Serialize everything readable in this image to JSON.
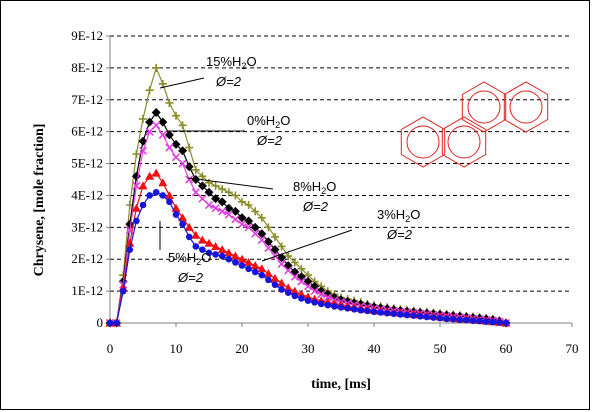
{
  "chart_data": {
    "type": "line",
    "title": "",
    "xlabel": "time, [ms]",
    "ylabel": "Chrysene, [mole fraction]",
    "xlim": [
      0,
      70
    ],
    "ylim": [
      0,
      9e-12
    ],
    "x_ticks": [
      "0",
      "10",
      "20",
      "30",
      "40",
      "50",
      "60",
      "70"
    ],
    "y_ticks": [
      "0",
      "1E-12",
      "2E-12",
      "3E-12",
      "4E-12",
      "5E-12",
      "6E-12",
      "7E-12",
      "8E-12",
      "9E-12"
    ],
    "grid": "horizontal dashed",
    "legend": "none",
    "annotations": [
      {
        "text": "15%H2O",
        "line2": "Ø=2",
        "series": "15%H2O Ø=2"
      },
      {
        "text": "0%H2O",
        "line2": "Ø=2",
        "series": "0%H2O Ø=2"
      },
      {
        "text": "8%H2O",
        "line2": "Ø=2",
        "series": "8%H2O Ø=2"
      },
      {
        "text": "3%H2O",
        "line2": "Ø=2",
        "series": "3%H2O Ø=2"
      },
      {
        "text": "5%H2O",
        "line2": "Ø=2",
        "series": "5%H2O Ø=2"
      }
    ],
    "inset": "chrysene-molecule-structure",
    "colors": {
      "15%": "#8b8b2a",
      "0%": "#000000",
      "8%": "#e33ee3",
      "3%": "#ee1111",
      "5%": "#1515dd",
      "molecule": "#dd2222"
    },
    "x": [
      0,
      1,
      2,
      3,
      4,
      5,
      6,
      7,
      8,
      9,
      10,
      11,
      12,
      13,
      14,
      15,
      16,
      17,
      18,
      19,
      20,
      21,
      22,
      23,
      24,
      25,
      26,
      27,
      28,
      29,
      30,
      31,
      32,
      33,
      34,
      35,
      36,
      37,
      38,
      39,
      40,
      41,
      42,
      43,
      44,
      45,
      46,
      47,
      48,
      49,
      50,
      51,
      52,
      53,
      54,
      55,
      56,
      57,
      58,
      59,
      60
    ],
    "series": [
      {
        "name": "15%H2O Ø=2",
        "marker": "plus",
        "values": [
          0,
          0,
          1.5e-12,
          3.7e-12,
          5.3e-12,
          6.4e-12,
          7.3e-12,
          8e-12,
          7.5e-12,
          6.9e-12,
          6.5e-12,
          6.2e-12,
          5.5e-12,
          4.8e-12,
          4.6e-12,
          4.4e-12,
          4.3e-12,
          4.2e-12,
          4.1e-12,
          4e-12,
          3.8e-12,
          3.7e-12,
          3.5e-12,
          3.3e-12,
          3e-12,
          2.7e-12,
          2.4e-12,
          2.1e-12,
          1.9e-12,
          1.7e-12,
          1.5e-12,
          1.3e-12,
          1.15e-12,
          1e-12,
          9e-13,
          8e-13,
          7.5e-13,
          7e-13,
          6.5e-13,
          6e-13,
          5.6e-13,
          5.2e-13,
          4.9e-13,
          4.6e-13,
          4.3e-13,
          4e-13,
          3.8e-13,
          3.6e-13,
          3.4e-13,
          3.2e-13,
          3e-13,
          2.8e-13,
          2.6e-13,
          2.4e-13,
          2.2e-13,
          2e-13,
          1.8e-13,
          1.5e-13,
          1.2e-13,
          8e-14,
          0
        ]
      },
      {
        "name": "0%H2O Ø=2",
        "marker": "diamond",
        "values": [
          0,
          0,
          1.3e-12,
          3.1e-12,
          4.6e-12,
          5.7e-12,
          6.3e-12,
          6.6e-12,
          6.3e-12,
          5.9e-12,
          5.6e-12,
          5.4e-12,
          4.9e-12,
          4.5e-12,
          4.3e-12,
          4.1e-12,
          3.9e-12,
          3.8e-12,
          3.6e-12,
          3.5e-12,
          3.3e-12,
          3.2e-12,
          3e-12,
          2.8e-12,
          2.55e-12,
          2.3e-12,
          2.05e-12,
          1.8e-12,
          1.6e-12,
          1.45e-12,
          1.3e-12,
          1.15e-12,
          1e-12,
          9e-13,
          8e-13,
          7.3e-13,
          6.8e-13,
          6.3e-13,
          5.9e-13,
          5.5e-13,
          5.1e-13,
          4.8e-13,
          4.5e-13,
          4.2e-13,
          3.9e-13,
          3.7e-13,
          3.5e-13,
          3.3e-13,
          3.1e-13,
          2.9e-13,
          2.7e-13,
          2.5e-13,
          2.3e-13,
          2.1e-13,
          1.9e-13,
          1.7e-13,
          1.5e-13,
          1.3e-13,
          1e-13,
          6e-14,
          0
        ]
      },
      {
        "name": "8%H2O Ø=2",
        "marker": "cross",
        "values": [
          0,
          0,
          1.2e-12,
          2.9e-12,
          4.3e-12,
          5.4e-12,
          6e-12,
          6.2e-12,
          5.9e-12,
          5.5e-12,
          5.2e-12,
          5e-12,
          4.5e-12,
          4.1e-12,
          3.9e-12,
          3.7e-12,
          3.6e-12,
          3.5e-12,
          3.4e-12,
          3.25e-12,
          3.1e-12,
          3e-12,
          2.8e-12,
          2.6e-12,
          2.35e-12,
          2.1e-12,
          1.85e-12,
          1.65e-12,
          1.45e-12,
          1.3e-12,
          1.15e-12,
          1e-12,
          9e-13,
          8e-13,
          7.2e-13,
          6.6e-13,
          6.1e-13,
          5.7e-13,
          5.3e-13,
          5e-13,
          4.6e-13,
          4.3e-13,
          4e-13,
          3.8e-13,
          3.6e-13,
          3.4e-13,
          3.2e-13,
          3e-13,
          2.8e-13,
          2.6e-13,
          2.4e-13,
          2.2e-13,
          2e-13,
          1.8e-13,
          1.6e-13,
          1.4e-13,
          1.2e-13,
          1e-13,
          8e-14,
          5e-14,
          0
        ]
      },
      {
        "name": "3%H2O Ø=2",
        "marker": "triangle",
        "values": [
          0,
          0,
          1.1e-12,
          2.5e-12,
          3.6e-12,
          4.3e-12,
          4.6e-12,
          4.7e-12,
          4.4e-12,
          4e-12,
          3.6e-12,
          3.3e-12,
          3e-12,
          2.75e-12,
          2.6e-12,
          2.5e-12,
          2.4e-12,
          2.3e-12,
          2.2e-12,
          2.1e-12,
          2e-12,
          1.9e-12,
          1.8e-12,
          1.7e-12,
          1.55e-12,
          1.4e-12,
          1.25e-12,
          1.1e-12,
          1e-12,
          9e-13,
          8.2e-13,
          7.5e-13,
          7e-13,
          6.5e-13,
          6e-13,
          5.6e-13,
          5.2e-13,
          4.9e-13,
          4.6e-13,
          4.3e-13,
          4e-13,
          3.7e-13,
          3.5e-13,
          3.3e-13,
          3.1e-13,
          2.9e-13,
          2.7e-13,
          2.5e-13,
          2.3e-13,
          2.1e-13,
          1.9e-13,
          1.7e-13,
          1.5e-13,
          1.3e-13,
          1.2e-13,
          1e-13,
          8e-14,
          6e-14,
          4e-14,
          2e-14,
          0
        ]
      },
      {
        "name": "5%H2O Ø=2",
        "marker": "circle",
        "values": [
          0,
          0,
          1e-12,
          2.3e-12,
          3.2e-12,
          3.7e-12,
          4e-12,
          4.1e-12,
          4e-12,
          3.8e-12,
          3.4e-12,
          3.1e-12,
          2.7e-12,
          2.4e-12,
          2.3e-12,
          2.2e-12,
          2.15e-12,
          2.1e-12,
          2e-12,
          1.9e-12,
          1.8e-12,
          1.7e-12,
          1.6e-12,
          1.5e-12,
          1.35e-12,
          1.2e-12,
          1.05e-12,
          9.5e-13,
          8.5e-13,
          7.7e-13,
          7e-13,
          6.5e-13,
          6e-13,
          5.6e-13,
          5.2e-13,
          4.9e-13,
          4.6e-13,
          4.3e-13,
          4e-13,
          3.8e-13,
          3.5e-13,
          3.3e-13,
          3.1e-13,
          2.9e-13,
          2.7e-13,
          2.5e-13,
          2.3e-13,
          2.1e-13,
          1.9e-13,
          1.7e-13,
          1.5e-13,
          1.3e-13,
          1.2e-13,
          1e-13,
          9e-14,
          7e-14,
          6e-14,
          4e-14,
          3e-14,
          2e-14,
          0
        ]
      }
    ]
  }
}
